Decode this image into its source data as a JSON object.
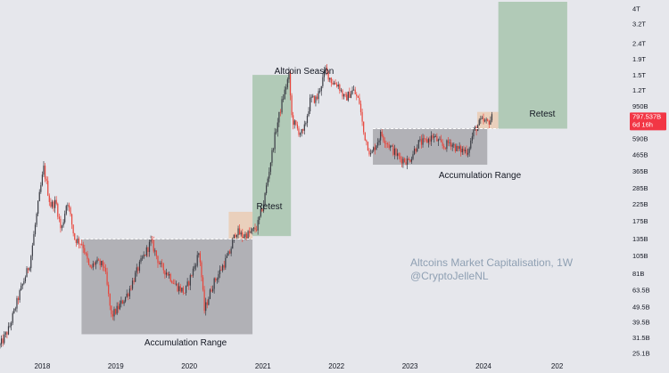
{
  "chart_data": {
    "type": "candlestick",
    "title": "Altcoins Market Capitalisation, 1W",
    "subtitle": "@CryptoJelleNL",
    "y_scale": "log",
    "ylim": [
      23000000000,
      4400000000000
    ],
    "xlim": [
      "2017-06-05",
      "2025-12-01"
    ],
    "y_ticks": [
      {
        "label": "4T",
        "value": 4000000000000
      },
      {
        "label": "3.2T",
        "value": 3200000000000
      },
      {
        "label": "2.4T",
        "value": 2400000000000
      },
      {
        "label": "1.9T",
        "value": 1900000000000
      },
      {
        "label": "1.5T",
        "value": 1500000000000
      },
      {
        "label": "1.2T",
        "value": 1200000000000
      },
      {
        "label": "950B",
        "value": 950000000000
      },
      {
        "label": "590B",
        "value": 590000000000
      },
      {
        "label": "465B",
        "value": 465000000000
      },
      {
        "label": "365B",
        "value": 365000000000
      },
      {
        "label": "285B",
        "value": 285000000000
      },
      {
        "label": "225B",
        "value": 225000000000
      },
      {
        "label": "175B",
        "value": 175000000000
      },
      {
        "label": "135B",
        "value": 135000000000
      },
      {
        "label": "105B",
        "value": 105000000000
      },
      {
        "label": "81B",
        "value": 81000000000
      },
      {
        "label": "63.5B",
        "value": 63500000000
      },
      {
        "label": "49.5B",
        "value": 49500000000
      },
      {
        "label": "39.5B",
        "value": 39500000000
      },
      {
        "label": "31.5B",
        "value": 31500000000
      },
      {
        "label": "25.1B",
        "value": 25100000000
      }
    ],
    "x_ticks": [
      {
        "label": "2018",
        "date": "2018-01-01"
      },
      {
        "label": "2019",
        "date": "2019-01-01"
      },
      {
        "label": "2020",
        "date": "2020-01-01"
      },
      {
        "label": "2021",
        "date": "2021-01-01"
      },
      {
        "label": "2022",
        "date": "2022-01-01"
      },
      {
        "label": "2023",
        "date": "2023-01-01"
      },
      {
        "label": "2024",
        "date": "2024-01-01"
      },
      {
        "label": "202",
        "date": "2025-01-01"
      }
    ],
    "price_label": {
      "value_text": "797.537B",
      "countdown": "6d 16h",
      "value": 797537000000,
      "color": "#f23645"
    },
    "candle_colors": {
      "up": "#3a3c44",
      "down": "#e8443a"
    },
    "path": [
      [
        "2017-06-05",
        28000000000.0
      ],
      [
        "2017-07-20",
        36000000000.0
      ],
      [
        "2017-09-10",
        60000000000.0
      ],
      [
        "2017-11-01",
        95000000000.0
      ],
      [
        "2017-12-15",
        240000000000.0
      ],
      [
        "2018-01-08",
        380000000000.0
      ],
      [
        "2018-02-10",
        220000000000.0
      ],
      [
        "2018-03-10",
        230000000000.0
      ],
      [
        "2018-04-05",
        150000000000.0
      ],
      [
        "2018-05-05",
        240000000000.0
      ],
      [
        "2018-06-10",
        135000000000.0
      ],
      [
        "2018-07-20",
        125000000000.0
      ],
      [
        "2018-08-25",
        85000000000.0
      ],
      [
        "2018-09-20",
        95000000000.0
      ],
      [
        "2018-11-05",
        90000000000.0
      ],
      [
        "2018-12-10",
        43000000000.0
      ],
      [
        "2019-01-10",
        48000000000.0
      ],
      [
        "2019-03-01",
        60000000000.0
      ],
      [
        "2019-04-20",
        86000000000.0
      ],
      [
        "2019-06-25",
        130000000000.0
      ],
      [
        "2019-08-10",
        90000000000.0
      ],
      [
        "2019-09-20",
        80000000000.0
      ],
      [
        "2019-10-25",
        68000000000.0
      ],
      [
        "2019-12-10",
        61000000000.0
      ],
      [
        "2020-01-20",
        85000000000.0
      ],
      [
        "2020-02-20",
        112000000000.0
      ],
      [
        "2020-03-16",
        47000000000.0
      ],
      [
        "2020-04-25",
        68000000000.0
      ],
      [
        "2020-06-05",
        85000000000.0
      ],
      [
        "2020-07-20",
        110000000000.0
      ],
      [
        "2020-08-20",
        152000000000.0
      ],
      [
        "2020-09-20",
        140000000000.0
      ],
      [
        "2020-10-25",
        145000000000.0
      ],
      [
        "2020-12-01",
        158000000000.0
      ],
      [
        "2021-01-05",
        230000000000.0
      ],
      [
        "2021-02-05",
        400000000000.0
      ],
      [
        "2021-03-05",
        650000000000.0
      ],
      [
        "2021-04-05",
        1000000000000.0
      ],
      [
        "2021-05-10",
        1500000000000.0
      ],
      [
        "2021-05-25",
        780000000000.0
      ],
      [
        "2021-06-25",
        660000000000.0
      ],
      [
        "2021-07-20",
        630000000000.0
      ],
      [
        "2021-08-25",
        1050000000000.0
      ],
      [
        "2021-09-25",
        1050000000000.0
      ],
      [
        "2021-11-08",
        1620000000000.0
      ],
      [
        "2021-12-10",
        1350000000000.0
      ],
      [
        "2022-01-10",
        1300000000000.0
      ],
      [
        "2022-02-10",
        1050000000000.0
      ],
      [
        "2022-03-25",
        1200000000000.0
      ],
      [
        "2022-04-25",
        1000000000000.0
      ],
      [
        "2022-05-15",
        650000000000.0
      ],
      [
        "2022-06-20",
        460000000000.0
      ],
      [
        "2022-08-10",
        630000000000.0
      ],
      [
        "2022-09-25",
        520000000000.0
      ],
      [
        "2022-11-10",
        440000000000.0
      ],
      [
        "2022-12-25",
        420000000000.0
      ],
      [
        "2023-02-10",
        550000000000.0
      ],
      [
        "2023-03-20",
        560000000000.0
      ],
      [
        "2023-04-25",
        610000000000.0
      ],
      [
        "2023-06-15",
        520000000000.0
      ],
      [
        "2023-07-20",
        560000000000.0
      ],
      [
        "2023-08-25",
        500000000000.0
      ],
      [
        "2023-10-15",
        490000000000.0
      ],
      [
        "2023-11-15",
        660000000000.0
      ],
      [
        "2023-12-20",
        760000000000.0
      ],
      [
        "2024-01-20",
        740000000000.0
      ],
      [
        "2024-02-12",
        798000000000.0
      ]
    ],
    "annotations": [
      {
        "kind": "label",
        "text": "Altcoin Season"
      },
      {
        "kind": "label",
        "text": "Retest",
        "near": "2020"
      },
      {
        "kind": "label",
        "text": "Retest",
        "near": "2024"
      },
      {
        "kind": "label",
        "text": "Accumulation Range",
        "near": "2019"
      },
      {
        "kind": "label",
        "text": "Accumulation Range",
        "near": "2023"
      },
      {
        "kind": "zone",
        "name": "accumulation-range-1",
        "x": [
          "2018-07-15",
          "2020-11-10"
        ],
        "y": [
          33000000000.0,
          134000000000.0
        ],
        "color": "#8f8f94"
      },
      {
        "kind": "zone",
        "name": "accumulation-range-2",
        "x": [
          "2022-07-01",
          "2024-01-20"
        ],
        "y": [
          400000000000.0,
          680000000000.0
        ],
        "color": "#8f8f94"
      },
      {
        "kind": "zone",
        "name": "altcoin-season",
        "x": [
          "2020-11-10",
          "2021-05-20"
        ],
        "y": [
          140000000000.0,
          1500000000000.0
        ],
        "color": "#8fb896"
      },
      {
        "kind": "zone",
        "name": "retest-1",
        "x": [
          "2020-07-15",
          "2020-11-10"
        ],
        "y": [
          134000000000.0,
          200000000000.0
        ],
        "color": "#ecc29e"
      },
      {
        "kind": "zone",
        "name": "retest-2",
        "x": [
          "2023-12-01",
          "2024-03-15"
        ],
        "y": [
          680000000000.0,
          870000000000.0
        ],
        "color": "#ecc29e"
      },
      {
        "kind": "zone",
        "name": "projected-season",
        "x": [
          "2024-03-15",
          "2025-02-20"
        ],
        "y": [
          680000000000.0,
          4400000000000.0
        ],
        "color": "#8fb896"
      },
      {
        "kind": "dashed_line",
        "name": "resistance-line-1",
        "x": [
          "2018-07-15",
          "2020-11-10"
        ],
        "y": 134000000000.0
      },
      {
        "kind": "dashed_line",
        "name": "resistance-line-2",
        "x": [
          "2022-07-01",
          "2024-03-15"
        ],
        "y": 680000000000.0
      }
    ]
  }
}
